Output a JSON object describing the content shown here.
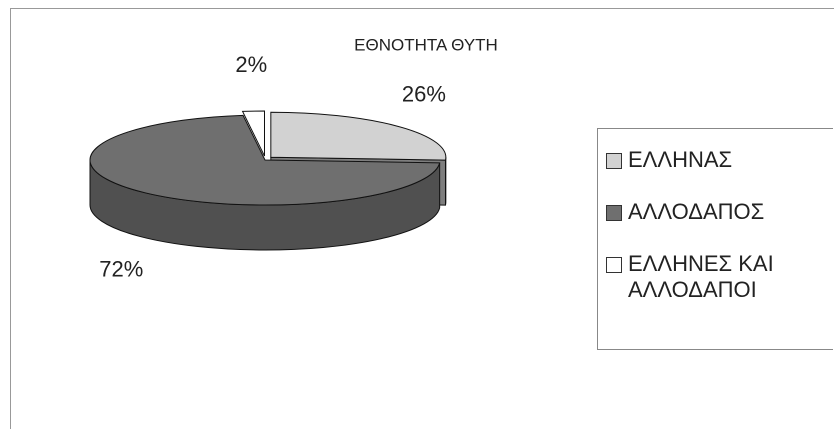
{
  "chart_data": {
    "type": "pie3d",
    "title": "ΕΘΝΟΤΗΤΑ ΘΥΤΗ",
    "categories": [
      "ΕΛΛΗΝΑΣ",
      "ΑΛΛΟΔΑΠΟΣ",
      "ΕΛΛΗΝΕΣ ΚΑΙ ΑΛΛΟΔΑΠΟΙ"
    ],
    "values": [
      26,
      72,
      2
    ],
    "value_labels": [
      "26%",
      "72%",
      "2%"
    ],
    "colors": [
      "#d2d2d2",
      "#6f6f6f",
      "#ffffff"
    ],
    "legend": "right"
  }
}
